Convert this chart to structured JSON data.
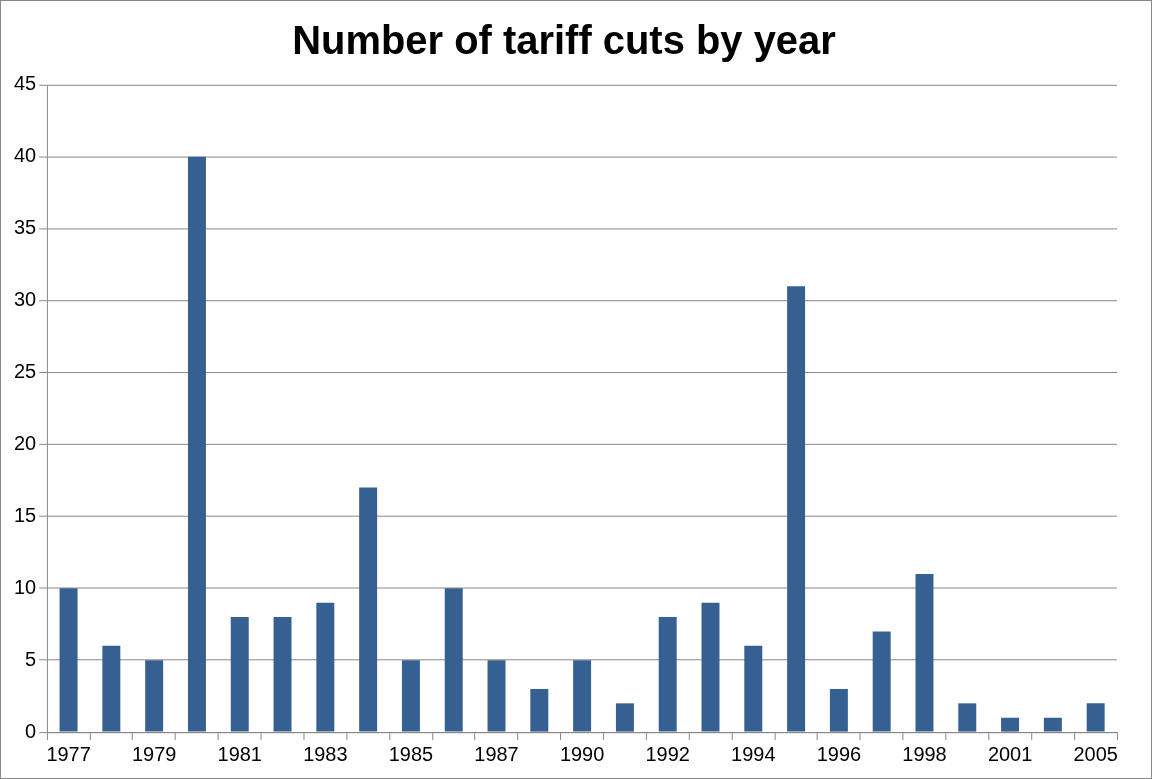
{
  "chart_data": {
    "type": "bar",
    "title": "Number of tariff cuts by year",
    "categories": [
      "1977",
      null,
      "1979",
      null,
      "1981",
      null,
      "1983",
      null,
      "1985",
      null,
      "1987",
      null,
      "1990",
      null,
      "1992",
      null,
      "1994",
      null,
      "1996",
      null,
      "1998",
      null,
      "2001",
      null,
      "2005"
    ],
    "values": [
      10,
      6,
      5,
      40,
      8,
      8,
      9,
      17,
      5,
      10,
      5,
      3,
      5,
      2,
      8,
      9,
      6,
      31,
      3,
      7,
      11,
      2,
      1,
      1,
      2
    ],
    "color": "#376092",
    "ylim": [
      0,
      45
    ],
    "yticks": [
      0,
      5,
      10,
      15,
      20,
      25,
      30,
      35,
      40,
      45
    ],
    "grid": "y",
    "legend": false
  }
}
